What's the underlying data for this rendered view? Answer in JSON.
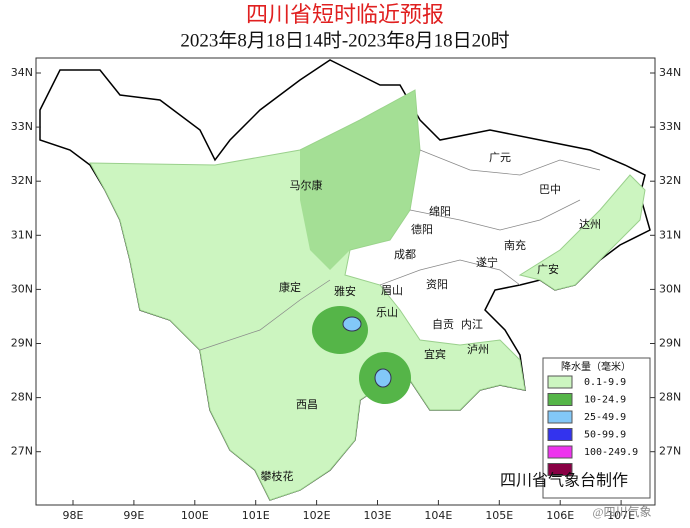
{
  "title": "四川省短时临近预报",
  "subtitle": "2023年8月18日14时-2023年8月18日20时",
  "lat_labels": [
    "34N",
    "33N",
    "32N",
    "31N",
    "30N",
    "29N",
    "28N",
    "27N"
  ],
  "lon_labels": [
    "98E",
    "99E",
    "100E",
    "101E",
    "102E",
    "103E",
    "104E",
    "105E",
    "106E",
    "107E"
  ],
  "cities": [
    "马尔康",
    "广元",
    "巴中",
    "达州",
    "绵阳",
    "德阳",
    "成都",
    "南充",
    "遂宁",
    "广安",
    "康定",
    "雅安",
    "眉山",
    "资阳",
    "乐山",
    "自贡",
    "内江",
    "宜宾",
    "泸州",
    "西昌",
    "攀枝花"
  ],
  "legend": {
    "title": "降水量（毫米）",
    "entries": [
      {
        "label": "0.1-9.9",
        "color": "#ccf5c0"
      },
      {
        "label": "10-24.9",
        "color": "#55b548"
      },
      {
        "label": "25-49.9",
        "color": "#82c8f8"
      },
      {
        "label": "50-99.9",
        "color": "#3333ee"
      },
      {
        "label": "100-249.9",
        "color": "#ee33ee"
      },
      {
        "label": null,
        "color": "#880044"
      }
    ]
  },
  "credit": "四川省气象台制作",
  "watermark": "@四川气象"
}
